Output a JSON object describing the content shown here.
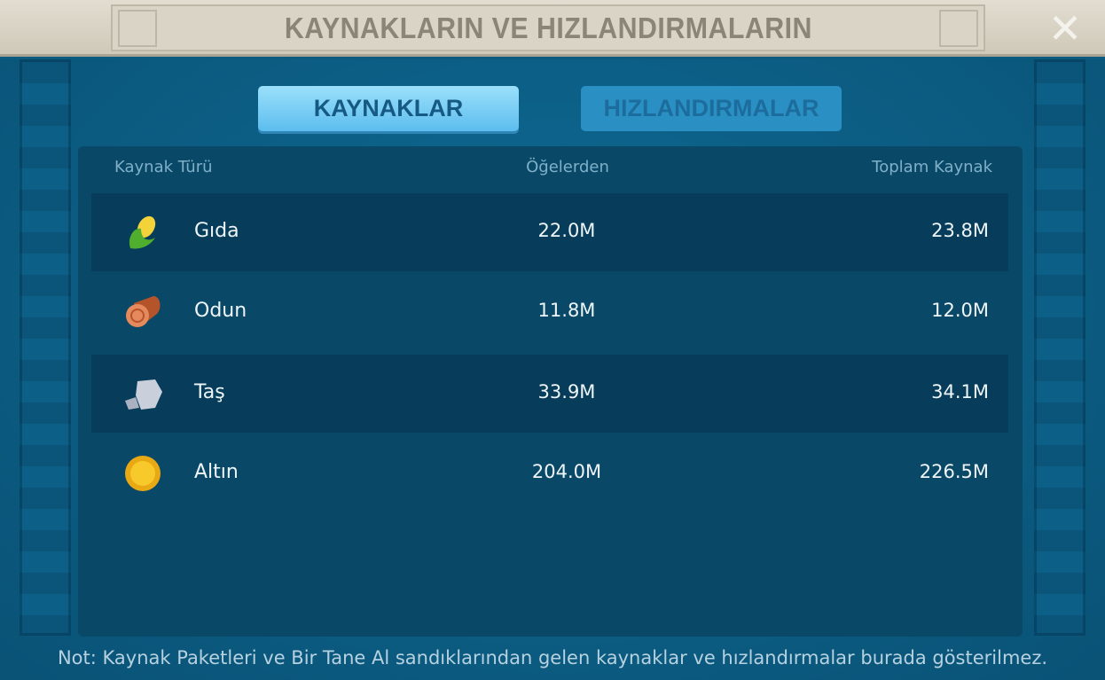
{
  "header": {
    "title": "KAYNAKLARIN VE HIZLANDIRMALARIN",
    "close_icon": "close-icon"
  },
  "tabs": [
    {
      "label": "KAYNAKLAR",
      "active": true
    },
    {
      "label": "HIZLANDIRMALAR",
      "active": false
    }
  ],
  "table": {
    "columns": [
      "Kaynak Türü",
      "Öğelerden",
      "Toplam Kaynak"
    ],
    "rows": [
      {
        "icon": "corn-icon",
        "name": "Gıda",
        "from_items": "22.0M",
        "total": "23.8M"
      },
      {
        "icon": "wood-log-icon",
        "name": "Odun",
        "from_items": "11.8M",
        "total": "12.0M"
      },
      {
        "icon": "stone-icon",
        "name": "Taş",
        "from_items": "33.9M",
        "total": "34.1M"
      },
      {
        "icon": "gold-coin-icon",
        "name": "Altın",
        "from_items": "204.0M",
        "total": "226.5M"
      }
    ]
  },
  "note": "Not: Kaynak Paketleri ve Bir Tane Al sandıklarından gelen kaynaklar ve hızlandırmalar burada gösterilmez."
}
